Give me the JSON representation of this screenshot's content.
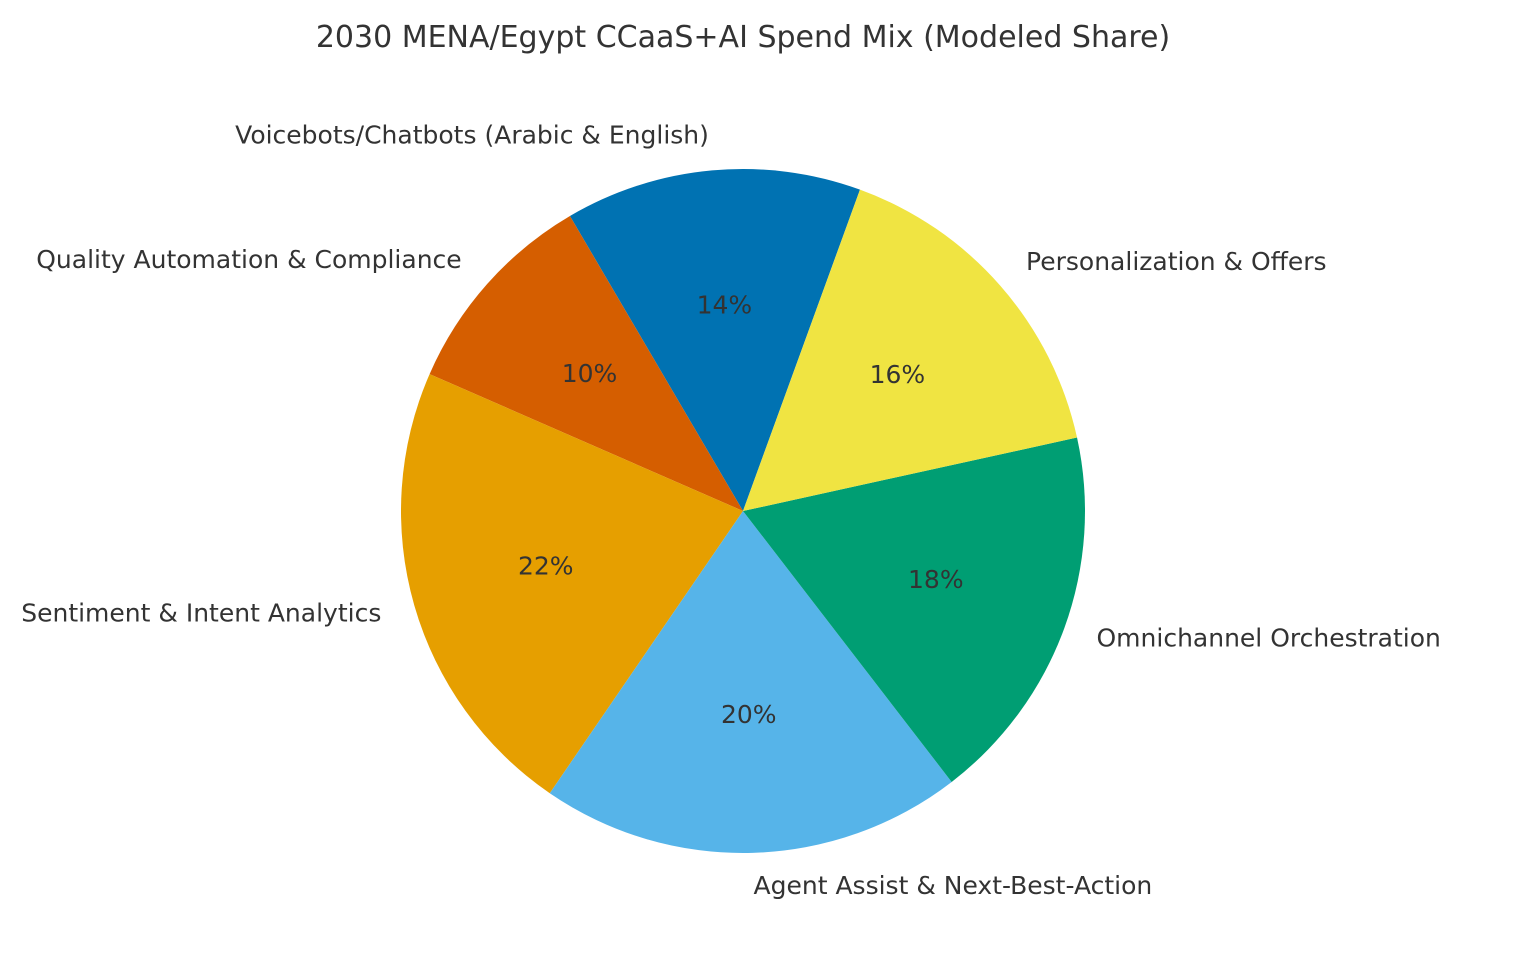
{
  "chart_data": {
    "type": "pie",
    "title": "2030 MENA/Egypt CCaaS+AI Spend Mix (Modeled Share)",
    "start_angle_deg": 70,
    "direction": "counterclockwise",
    "slices": [
      {
        "label": "Voicebots/Chatbots (Arabic & English)",
        "value": 14,
        "pct_label": "14%",
        "color": "#0072B2"
      },
      {
        "label": "Quality Automation & Compliance",
        "value": 10,
        "pct_label": "10%",
        "color": "#D55E00"
      },
      {
        "label": "Sentiment & Intent Analytics",
        "value": 22,
        "pct_label": "22%",
        "color": "#E69F00"
      },
      {
        "label": "Agent Assist & Next-Best-Action",
        "value": 20,
        "pct_label": "20%",
        "color": "#56B4E9"
      },
      {
        "label": "Omnichannel Orchestration",
        "value": 18,
        "pct_label": "18%",
        "color": "#009E73"
      },
      {
        "label": "Personalization & Offers",
        "value": 16,
        "pct_label": "16%",
        "color": "#F0E442"
      }
    ]
  }
}
